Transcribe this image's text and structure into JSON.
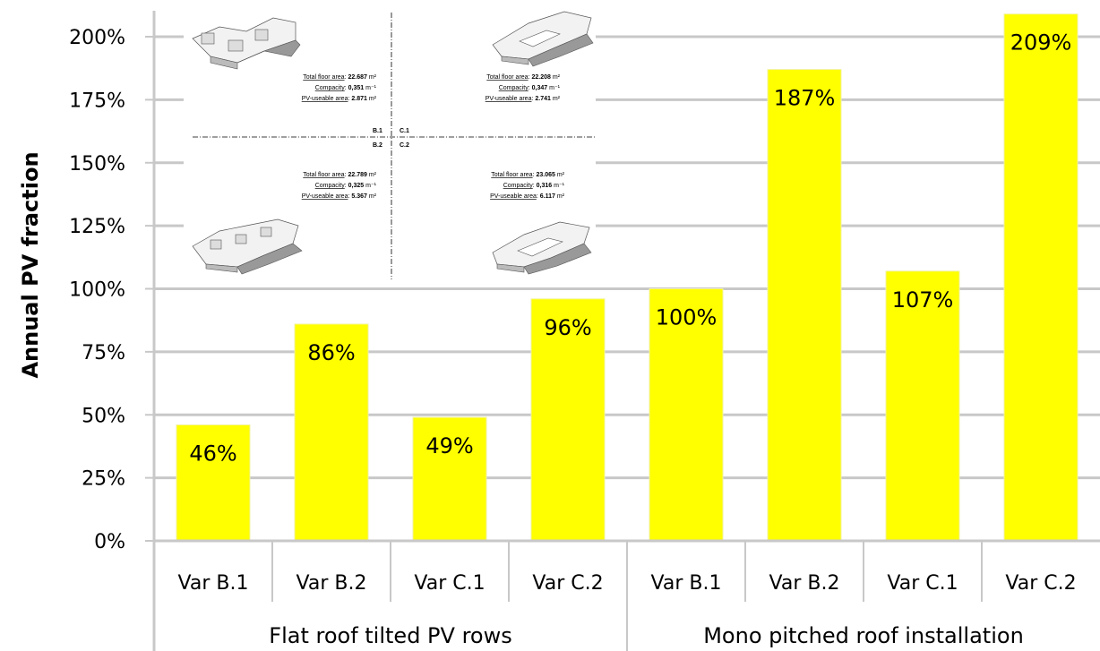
{
  "chart_data": {
    "type": "bar",
    "ylabel": "Annual PV fraction",
    "ylim": [
      0,
      209
    ],
    "yticks": [
      "0%",
      "25%",
      "50%",
      "75%",
      "100%",
      "125%",
      "150%",
      "175%",
      "200%"
    ],
    "ytick_values": [
      0,
      25,
      50,
      75,
      100,
      125,
      150,
      175,
      200
    ],
    "grid": true,
    "bar_color": "#ffff00",
    "categories": [
      "Var B.1",
      "Var B.2",
      "Var C.1",
      "Var C.2",
      "Var B.1",
      "Var B.2",
      "Var C.1",
      "Var C.2"
    ],
    "values": [
      46,
      86,
      49,
      96,
      100,
      187,
      107,
      209
    ],
    "data_labels": [
      "46%",
      "86%",
      "49%",
      "96%",
      "100%",
      "187%",
      "107%",
      "209%"
    ],
    "groups": [
      {
        "label": "Flat roof tilted PV rows",
        "count": 4
      },
      {
        "label": "Mono pitched roof installation",
        "count": 4
      }
    ]
  },
  "inset": {
    "quadrant_labels": {
      "top_left": "B.1",
      "top_right": "C.1",
      "bottom_left": "B.2",
      "bottom_right": "C.2"
    },
    "keys": {
      "floor": "Total floor area",
      "compacity": "Compacity",
      "pv": "PV-useable area"
    },
    "panels": [
      {
        "id": "B.1",
        "floor": "22.687",
        "compacity": "0,351",
        "pv": "2.871"
      },
      {
        "id": "C.1",
        "floor": "22.208",
        "compacity": "0,347",
        "pv": "2.741"
      },
      {
        "id": "B.2",
        "floor": "22.789",
        "compacity": "0,325",
        "pv": "5.367"
      },
      {
        "id": "C.2",
        "floor": "23.065",
        "compacity": "0,316",
        "pv": "6.117"
      }
    ],
    "units": {
      "area": "m²",
      "compacity": "m⁻¹"
    }
  }
}
